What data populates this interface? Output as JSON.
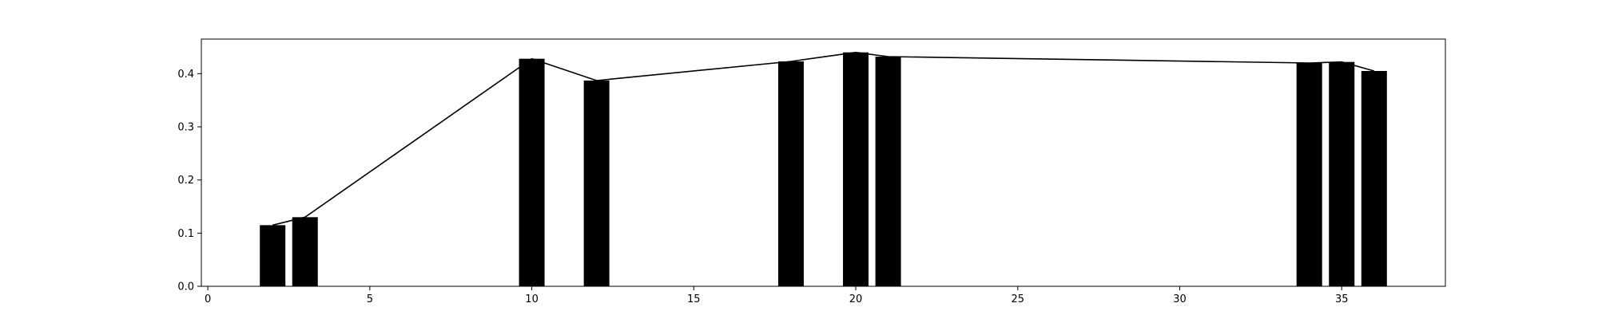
{
  "chart_data": {
    "type": "bar",
    "title": "",
    "xlabel": "",
    "ylabel": "",
    "x": [
      2,
      3,
      10,
      12,
      18,
      20,
      21,
      34,
      35,
      36
    ],
    "values": [
      0.115,
      0.13,
      0.428,
      0.387,
      0.423,
      0.44,
      0.432,
      0.42,
      0.422,
      0.405
    ],
    "line": {
      "x": [
        2,
        3,
        10,
        12,
        18,
        20,
        21,
        34,
        35,
        36
      ],
      "y": [
        0.115,
        0.13,
        0.428,
        0.387,
        0.423,
        0.44,
        0.432,
        0.42,
        0.422,
        0.405
      ]
    },
    "xlim": [
      -0.2,
      38.2
    ],
    "ylim": [
      0.0,
      0.465
    ],
    "xticks": [
      0,
      5,
      10,
      15,
      20,
      25,
      30,
      35
    ],
    "xtick_labels": [
      "0",
      "5",
      "10",
      "15",
      "20",
      "25",
      "30",
      "35"
    ],
    "yticks": [
      0.0,
      0.1,
      0.2,
      0.3,
      0.4
    ],
    "ytick_labels": [
      "0.0",
      "0.1",
      "0.2",
      "0.3",
      "0.4"
    ],
    "bar_color": "#000000",
    "line_color": "#000000",
    "grid": false,
    "legend": "none"
  }
}
